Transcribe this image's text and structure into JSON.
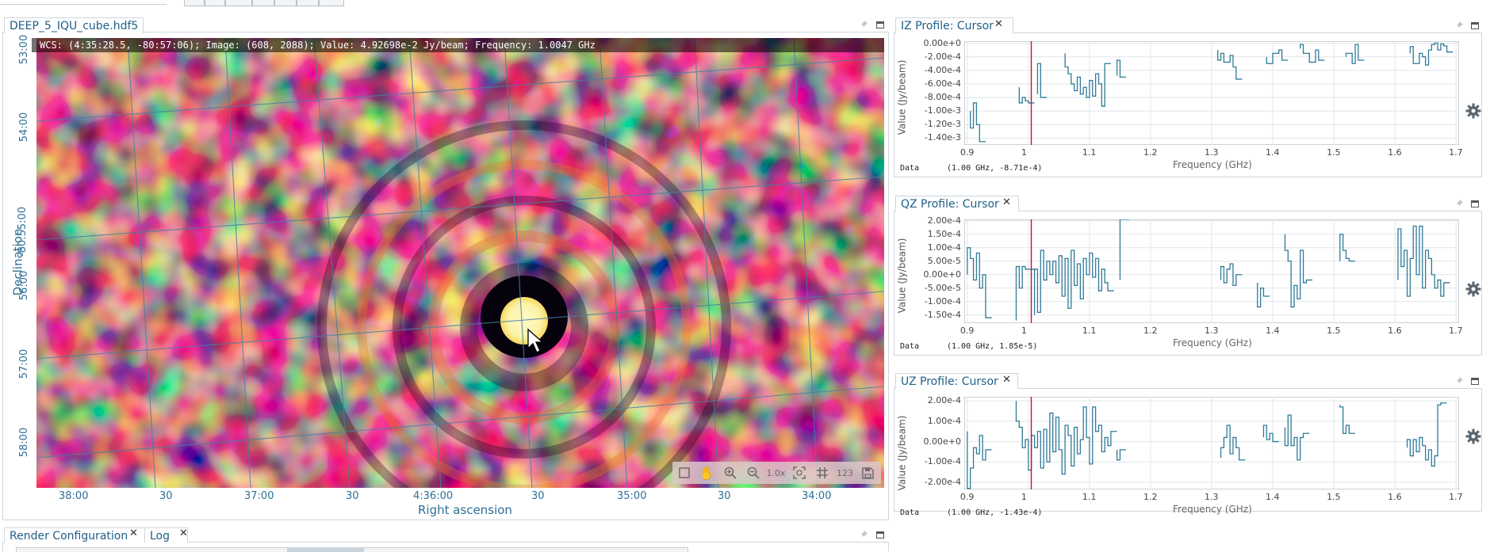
{
  "image_panel": {
    "tab_title": "DEEP_5_IQU_cube.hdf5",
    "cursor_info": "WCS: (4:35:28.5, -80:57:06); Image: (608, 2088); Value:  4.92698e-2 Jy/beam; Frequency: 1.0047 GHz",
    "x_axis_title": "Right ascension",
    "y_axis_title": "Declination",
    "x_ticks": [
      "38:00",
      "30",
      "37:00",
      "30",
      "4:36:00",
      "30",
      "35:00",
      "30",
      "34:00"
    ],
    "y_ticks": [
      "53:00",
      "54:00",
      "-80:55:00",
      "56:00",
      "57:00",
      "58:00"
    ],
    "toolbar": {
      "zoom_level": "1.0x",
      "labels_button": "123",
      "icons": [
        "region-rect-icon",
        "pan-hand-icon",
        "zoom-in-icon",
        "zoom-out-icon",
        "zoom-level-label",
        "zoom-fit-icon",
        "grid-icon",
        "labels-icon",
        "save-icon"
      ]
    },
    "colormap": "inferno"
  },
  "profiles": [
    {
      "tab_title": "IZ Profile: Cursor",
      "ylabel": "Value (Jy/beam)",
      "xlabel": "Frequency (GHz)",
      "y_ticks": [
        "0.00e+0",
        "-2.00e-4",
        "-4.00e-4",
        "-6.00e-4",
        "-8.00e-4",
        "-1.00e-3",
        "-1.20e-3",
        "-1.40e-3"
      ],
      "x_ticks": [
        "0.9",
        "1",
        "1.1",
        "1.2",
        "1.3",
        "1.4",
        "1.5",
        "1.6",
        "1.7"
      ],
      "data_label": "Data",
      "data_value": "(1.00 GHz, -8.71e-4)"
    },
    {
      "tab_title": "QZ Profile: Cursor",
      "ylabel": "Value (Jy/beam)",
      "xlabel": "Frequency (GHz)",
      "y_ticks": [
        "2.00e-4",
        "1.50e-4",
        "1.00e-4",
        "5.00e-5",
        "0.00e+0",
        "-5.00e-5",
        "-1.00e-4",
        "-1.50e-4"
      ],
      "x_ticks": [
        "0.9",
        "1",
        "1.1",
        "1.2",
        "1.3",
        "1.4",
        "1.5",
        "1.6",
        "1.7"
      ],
      "data_label": "Data",
      "data_value": "(1.00 GHz, 1.85e-5)"
    },
    {
      "tab_title": "UZ Profile: Cursor",
      "ylabel": "Value (Jy/beam)",
      "xlabel": "Frequency (GHz)",
      "y_ticks": [
        "2.00e-4",
        "1.00e-4",
        "0.00e+0",
        "-1.00e-4",
        "-2.00e-4"
      ],
      "x_ticks": [
        "0.9",
        "1",
        "1.1",
        "1.2",
        "1.3",
        "1.4",
        "1.5",
        "1.6",
        "1.7"
      ],
      "data_label": "Data",
      "data_value": "(1.00 GHz, -1.43e-4)"
    }
  ],
  "bottom_tabs": [
    "Render Configuration",
    "Log"
  ],
  "colors": {
    "accent": "#2e6f96",
    "profile_line": "#2f7a98",
    "cursor_line": "#c8102e",
    "panel_border": "#cfd6dc"
  }
}
